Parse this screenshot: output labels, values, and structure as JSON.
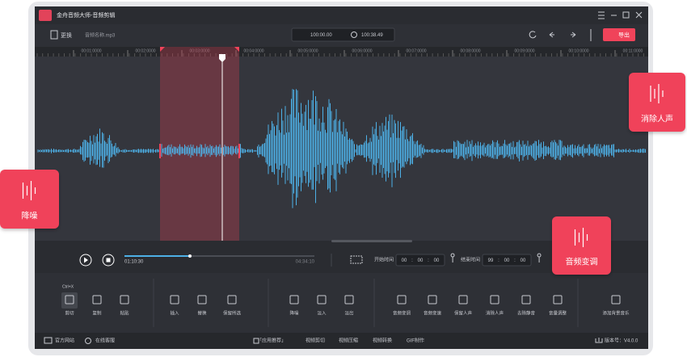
{
  "app": {
    "title": "金舟音频大师-音频剪辑"
  },
  "toolbar": {
    "replace": "更换",
    "file_name": "音频名称.mp3",
    "position": "100:00.00",
    "duration": "100:38.49",
    "export": "导出"
  },
  "timeline": {
    "ticks": [
      "00:01:0000",
      "00:02:0000",
      "00:03:0000",
      "00:04:0000",
      "00:05:0000",
      "00:06:0000",
      "00:07:0000",
      "00:08:0000",
      "00:09:0000",
      "00:10:0000",
      "00:11:0000"
    ]
  },
  "player": {
    "current": "01:10:30",
    "total": "04:34:10",
    "start_label": "开始时间",
    "start_time": [
      "00",
      "00",
      "00"
    ],
    "end_label": "结束时间",
    "end_time": [
      "99",
      "00",
      "00"
    ]
  },
  "tools": {
    "tooltip": "Ctrl+X",
    "items": [
      "剪切",
      "复制",
      "粘贴",
      "插入",
      "替换",
      "保留所选",
      "降噪",
      "淡入",
      "淡出",
      "音频变调",
      "音频变速",
      "保留人声",
      "消除人声",
      "去除静音",
      "音量调整",
      "添加背景音乐"
    ]
  },
  "footer": {
    "website": "官方网站",
    "support": "在线客服",
    "links": [
      "「应用推荐」",
      "视频剪切",
      "视频压缩",
      "视频转换",
      "GIF制作"
    ],
    "version": "版本号：V4.0.0"
  },
  "callouts": [
    "降噪",
    "消除人声",
    "音频变调"
  ]
}
